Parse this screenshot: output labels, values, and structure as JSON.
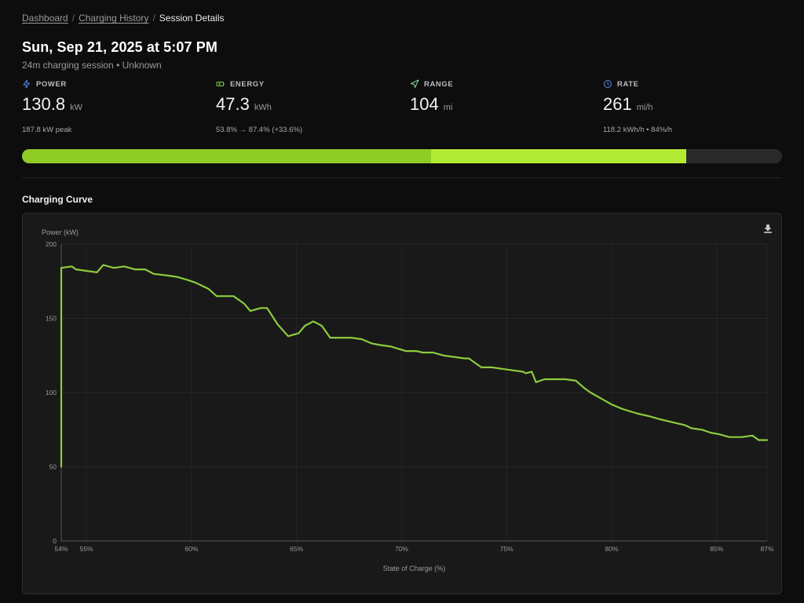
{
  "breadcrumb": {
    "items": [
      "Dashboard",
      "Charging History"
    ],
    "current": "Session Details"
  },
  "session": {
    "title": "Sun, Sep 21, 2025 at 5:07 PM",
    "subtitle": "24m charging session • Unknown"
  },
  "stats": {
    "power": {
      "label": "POWER",
      "value": "130.8",
      "unit": "kW",
      "sub": "187.8 kW peak",
      "icon": "bolt-icon",
      "color": "#5b8df0"
    },
    "energy": {
      "label": "ENERGY",
      "value": "47.3",
      "unit": "kWh",
      "sub": "53.8% → 87.4% (+33.6%)",
      "icon": "battery-icon",
      "color": "#7fd04a"
    },
    "range": {
      "label": "RANGE",
      "value": "104",
      "unit": "mi",
      "sub": "",
      "icon": "navigation-arrow-icon",
      "color": "#8fd8a0"
    },
    "rate": {
      "label": "RATE",
      "value": "261",
      "unit": "mi/h",
      "sub": "118.2 kWh/h  •  84%/h",
      "icon": "clock-icon",
      "color": "#5b8df0"
    }
  },
  "progress": {
    "start_percent": 53.8,
    "end_percent": 87.4,
    "colors": {
      "start": "#8fcc25",
      "added": "#b3ea34",
      "track": "#2a2a2a"
    }
  },
  "section": {
    "chart_title": "Charging Curve"
  },
  "chart_data": {
    "type": "line",
    "title": "",
    "ylabel": "Power (kW)",
    "xlabel": "State of Charge (%)",
    "xlim": [
      53.8,
      87.4
    ],
    "ylim": [
      0,
      200
    ],
    "grid": true,
    "line_color": "#8ccc3e",
    "x_ticks": [
      53.8,
      55,
      60,
      65,
      70,
      75,
      80,
      85,
      87.4
    ],
    "x_tick_labels": [
      "54%",
      "55%",
      "60%",
      "65%",
      "70%",
      "75%",
      "80%",
      "85%",
      "87%"
    ],
    "y_ticks": [
      0,
      50,
      100,
      150,
      200
    ],
    "y_tick_labels": [
      "0",
      "50",
      "100",
      "150",
      "200"
    ],
    "series": [
      {
        "x": [
          53.8,
          53.8,
          54.3,
          54.5,
          55.0,
          55.5,
          55.8,
          56.3,
          56.8,
          57.3,
          57.8,
          58.2,
          58.8,
          59.3,
          59.8,
          60.2,
          60.8,
          61.2,
          61.5,
          62.0,
          62.5,
          62.8,
          63.3,
          63.6,
          64.1,
          64.6,
          65.1,
          65.4,
          65.8,
          66.2,
          66.6,
          67.1,
          67.6,
          68.1,
          68.6,
          69.0,
          69.5,
          70.2,
          70.7,
          71.0,
          71.5,
          72.0,
          72.5,
          73.0,
          73.2,
          73.8,
          74.3,
          74.8,
          75.3,
          75.8,
          75.9,
          76.2,
          76.4,
          76.8,
          77.2,
          77.8,
          78.3,
          78.7,
          79.0,
          79.5,
          80.0,
          80.5,
          81.2,
          81.8,
          82.3,
          82.9,
          83.5,
          83.8,
          84.3,
          84.7,
          85.1,
          85.6,
          86.2,
          86.7,
          87.0,
          87.4
        ],
        "y": [
          50,
          184,
          185,
          183,
          182,
          181,
          186,
          184,
          185,
          183,
          183,
          180,
          179,
          178,
          176,
          174,
          170,
          165,
          165,
          165,
          160,
          155,
          157,
          157,
          146,
          138,
          140,
          145,
          148,
          145,
          137,
          137,
          137,
          136,
          133,
          132,
          131,
          128,
          128,
          127,
          127,
          125,
          124,
          123,
          123,
          117,
          117,
          116,
          115,
          114,
          113,
          114,
          107,
          109,
          109,
          109,
          108,
          103,
          100,
          96,
          92,
          89,
          86,
          84,
          82,
          80,
          78,
          76,
          75,
          73,
          72,
          70,
          70,
          71,
          68,
          68
        ]
      }
    ]
  }
}
